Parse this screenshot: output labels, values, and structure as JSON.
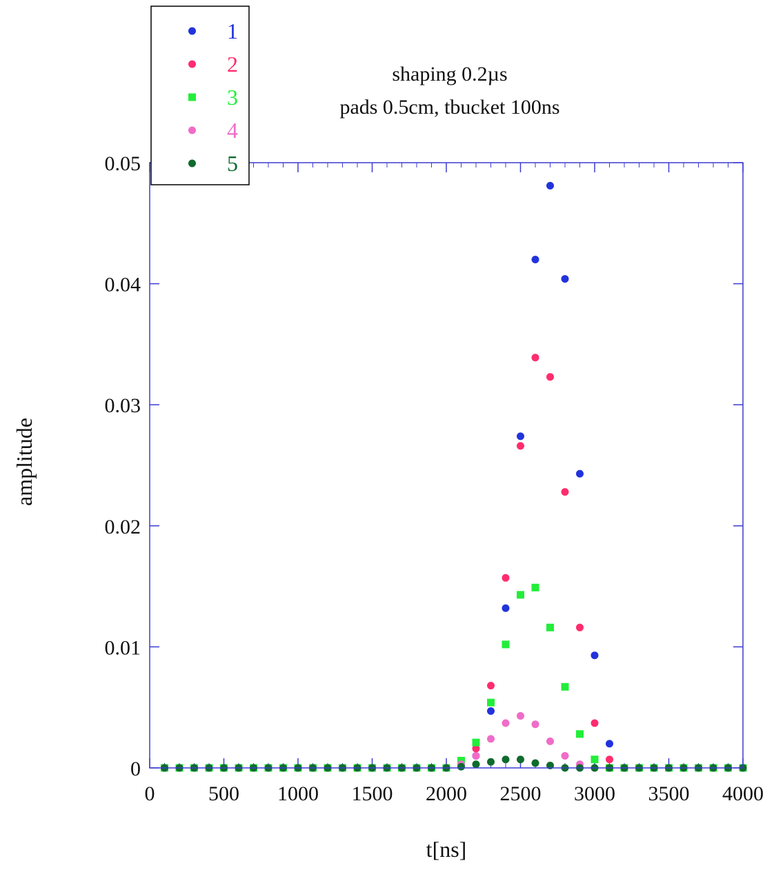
{
  "chart_data": {
    "type": "scatter",
    "title_lines": [
      "shaping 0.2µs",
      "pads 0.5cm, tbucket 100ns"
    ],
    "xlabel": "t[ns]",
    "ylabel": "amplitude",
    "xlim": [
      0,
      4000
    ],
    "ylim": [
      0,
      0.05
    ],
    "xticks": [
      0,
      500,
      1000,
      1500,
      2000,
      2500,
      3000,
      3500,
      4000
    ],
    "yticks": [
      0,
      0.01,
      0.02,
      0.03,
      0.04,
      0.05
    ],
    "ytick_labels": [
      "0",
      "0.01",
      "0.02",
      "0.03",
      "0.04",
      "0.05"
    ],
    "grid": false,
    "legend_position": "top-left",
    "frame_color": "#3b3bd1",
    "x": [
      100,
      200,
      300,
      400,
      500,
      600,
      700,
      800,
      900,
      1000,
      1100,
      1200,
      1300,
      1400,
      1500,
      1600,
      1700,
      1800,
      1900,
      2000,
      2100,
      2200,
      2300,
      2400,
      2500,
      2600,
      2700,
      2800,
      2900,
      3000,
      3100,
      3200,
      3300,
      3400,
      3500,
      3600,
      3700,
      3800,
      3900,
      4000
    ],
    "series": [
      {
        "name": "1",
        "marker": "circle",
        "color": "#2233dd",
        "values": [
          0,
          0,
          0,
          0,
          0,
          0,
          0,
          0,
          0,
          0,
          0,
          0,
          0,
          0,
          0,
          0,
          0,
          0,
          0,
          0,
          0.0003,
          0.001,
          0.0047,
          0.0132,
          0.0274,
          0.042,
          0.0481,
          0.0404,
          0.0243,
          0.0093,
          0.002,
          0,
          0,
          0,
          0,
          0,
          0,
          0,
          0,
          0
        ]
      },
      {
        "name": "2",
        "marker": "circle",
        "color": "#ff2c6e",
        "values": [
          0,
          0,
          0,
          0,
          0,
          0,
          0,
          0,
          0,
          0,
          0,
          0,
          0,
          0,
          0,
          0,
          0,
          0,
          0,
          0,
          0.0004,
          0.0016,
          0.0068,
          0.0157,
          0.0266,
          0.0339,
          0.0323,
          0.0228,
          0.0116,
          0.0037,
          0.0007,
          0,
          0,
          0,
          0,
          0,
          0,
          0,
          0,
          0
        ]
      },
      {
        "name": "3",
        "marker": "square",
        "color": "#22ee3a",
        "values": [
          0,
          0,
          0,
          0,
          0,
          0,
          0,
          0,
          0,
          0,
          0,
          0,
          0,
          0,
          0,
          0,
          0,
          0,
          0,
          0,
          0.0006,
          0.0021,
          0.0054,
          0.0102,
          0.0143,
          0.0149,
          0.0116,
          0.0067,
          0.0028,
          0.0007,
          0,
          0,
          0,
          0,
          0,
          0,
          0,
          0,
          0,
          0
        ]
      },
      {
        "name": "4",
        "marker": "circle",
        "color": "#f06cc8",
        "values": [
          0,
          0,
          0,
          0,
          0,
          0,
          0,
          0,
          0,
          0,
          0,
          0,
          0,
          0,
          0,
          0,
          0,
          0,
          0,
          0,
          0.0003,
          0.001,
          0.0024,
          0.0037,
          0.0043,
          0.0036,
          0.0022,
          0.001,
          0.0003,
          0,
          0,
          0,
          0,
          0,
          0,
          0,
          0,
          0,
          0,
          0
        ]
      },
      {
        "name": "5",
        "marker": "circle",
        "color": "#0f6b2d",
        "values": [
          0,
          0,
          0,
          0,
          0,
          0,
          0,
          0,
          0,
          0,
          0,
          0,
          0,
          0,
          0,
          0,
          0,
          0,
          0,
          0,
          0.0001,
          0.0003,
          0.0005,
          0.0007,
          0.0007,
          0.0004,
          0.0002,
          0,
          0,
          0,
          0,
          0,
          0,
          0,
          0,
          0,
          0,
          0,
          0,
          0
        ]
      }
    ]
  }
}
